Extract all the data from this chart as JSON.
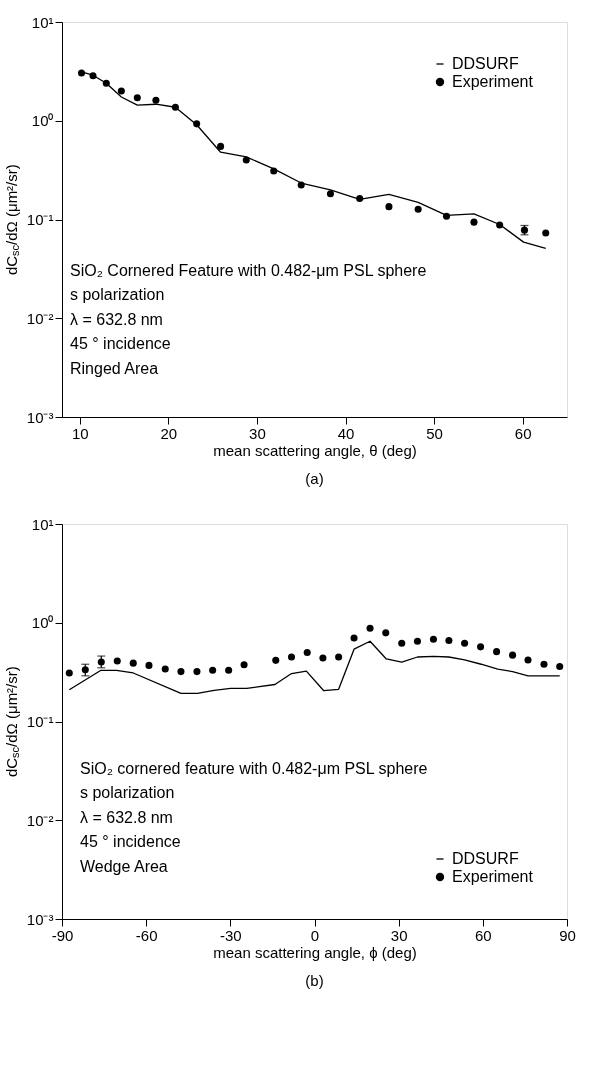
{
  "chart_data": [
    {
      "type": "line",
      "xlabel": "mean scattering angle, θ (deg)",
      "ylabel": "dC$_{sc}$/dΩ (μm²/sr)",
      "log": "y",
      "xlim": [
        8,
        65
      ],
      "xticks": [
        10,
        20,
        30,
        40,
        50,
        60
      ],
      "ylim": [
        0.001,
        10
      ],
      "yticks": [
        {
          "value": 0.001,
          "label": "10⁻³"
        },
        {
          "value": 0.01,
          "label": "10⁻²"
        },
        {
          "value": 0.1,
          "label": "10⁻¹"
        },
        {
          "value": 1,
          "label": "10⁰"
        },
        {
          "value": 10,
          "label": "10¹"
        }
      ],
      "grid": false,
      "legend": "top right",
      "series": [
        {
          "name": "DDSURF",
          "type": "line",
          "color": "#000000",
          "line_style": "solid",
          "x": [
            10.2,
            11.5,
            13.0,
            14.7,
            16.5,
            18.6,
            20.8,
            23.2,
            25.9,
            28.8,
            31.9,
            35.0,
            38.3,
            41.6,
            44.9,
            48.2,
            51.4,
            54.5,
            57.4,
            60.1,
            62.6
          ],
          "values": [
            3.12,
            2.89,
            2.4,
            1.74,
            1.44,
            1.47,
            1.37,
            0.91,
            0.48,
            0.43,
            0.326,
            0.234,
            0.199,
            0.16,
            0.18,
            0.149,
            0.11,
            0.114,
            0.089,
            0.059,
            0.051
          ]
        },
        {
          "name": "Experiment",
          "type": "scatter",
          "color": "#000000",
          "marker": "circle",
          "x": [
            10.2,
            11.5,
            13.0,
            14.7,
            16.5,
            18.6,
            20.8,
            23.2,
            25.9,
            28.8,
            31.9,
            35.0,
            38.3,
            41.6,
            44.9,
            48.2,
            51.4,
            54.5,
            57.4,
            60.2,
            62.6
          ],
          "values": [
            3.05,
            2.85,
            2.4,
            2.0,
            1.71,
            1.61,
            1.37,
            0.93,
            0.55,
            0.4,
            0.31,
            0.224,
            0.182,
            0.163,
            0.135,
            0.127,
            0.108,
            0.094,
            0.088,
            0.078,
            0.073
          ],
          "errors": [
            null,
            null,
            null,
            null,
            null,
            null,
            null,
            null,
            null,
            null,
            null,
            null,
            null,
            null,
            null,
            null,
            null,
            null,
            null,
            [
              0.07,
              0.087
            ],
            null
          ]
        }
      ],
      "annotations": [
        "SiO₂ Cornered Feature with 0.482-μm PSL sphere",
        "s polarization",
        "λ = 632.8 nm",
        "45 ° incidence",
        "Ringed Area",
        "(a)"
      ]
    },
    {
      "type": "line",
      "xlabel": "mean scattering angle, ϕ (deg)",
      "ylabel": "dC$_{sc}$/dΩ (μm²/sr)",
      "log": "y",
      "xlim": [
        -90,
        90
      ],
      "xticks": [
        -90,
        -60,
        -30,
        0,
        30,
        60,
        90
      ],
      "ylim": [
        0.001,
        10
      ],
      "yticks": [
        {
          "value": 0.001,
          "label": "10⁻³"
        },
        {
          "value": 0.01,
          "label": "10⁻²"
        },
        {
          "value": 0.1,
          "label": "10⁻¹"
        },
        {
          "value": 1,
          "label": "10⁰"
        },
        {
          "value": 10,
          "label": "10¹"
        }
      ],
      "grid": false,
      "legend": "bottom right",
      "series": [
        {
          "name": "DDSURF",
          "type": "line",
          "color": "#000000",
          "line_style": "solid",
          "x": [
            -87.4,
            -76.1,
            -70.6,
            -64.6,
            -47.6,
            -41.7,
            -35.8,
            -29.9,
            -24.1,
            -14.1,
            -8.2,
            -2.9,
            3.3,
            8.6,
            14.1,
            19.8,
            25.6,
            31.1,
            36.7,
            42.4,
            47.9,
            53.5,
            59.4,
            65.3,
            70.6,
            76.1,
            81.8,
            87.4
          ],
          "values": [
            0.21,
            0.33,
            0.33,
            0.31,
            0.193,
            0.193,
            0.207,
            0.217,
            0.217,
            0.237,
            0.306,
            0.324,
            0.205,
            0.212,
            0.54,
            0.65,
            0.43,
            0.4,
            0.45,
            0.457,
            0.45,
            0.42,
            0.38,
            0.34,
            0.32,
            0.29,
            0.29,
            0.29
          ]
        },
        {
          "name": "Experiment",
          "type": "scatter",
          "color": "#000000",
          "marker": "circle",
          "x": [
            -87.4,
            -81.7,
            -76.0,
            -70.3,
            -64.6,
            -59.0,
            -53.2,
            -47.6,
            -41.9,
            -36.3,
            -30.6,
            -25.1,
            -13.8,
            -8.2,
            -2.6,
            3.0,
            8.6,
            14.1,
            19.8,
            25.4,
            31.1,
            36.7,
            42.4,
            47.9,
            53.5,
            59.2,
            64.9,
            70.6,
            76.1,
            81.8,
            87.4
          ],
          "values": [
            0.31,
            0.334,
            0.4,
            0.41,
            0.39,
            0.37,
            0.34,
            0.32,
            0.32,
            0.33,
            0.33,
            0.375,
            0.416,
            0.45,
            0.5,
            0.44,
            0.45,
            0.7,
            0.88,
            0.79,
            0.62,
            0.65,
            0.68,
            0.66,
            0.62,
            0.57,
            0.51,
            0.47,
            0.42,
            0.38,
            0.36
          ],
          "errors": [
            null,
            [
              0.29,
              0.38
            ],
            [
              0.35,
              0.46
            ],
            null,
            null,
            null,
            null,
            null,
            null,
            null,
            null,
            null,
            null,
            null,
            null,
            null,
            null,
            null,
            null,
            null,
            null,
            null,
            null,
            null,
            null,
            null,
            null,
            null,
            null,
            null,
            null
          ]
        }
      ],
      "annotations": [
        "SiO₂ cornered feature with 0.482-μm PSL sphere",
        "s polarization",
        "λ = 632.8 nm",
        "45 ° incidence",
        "Wedge Area",
        "(b)"
      ]
    }
  ]
}
